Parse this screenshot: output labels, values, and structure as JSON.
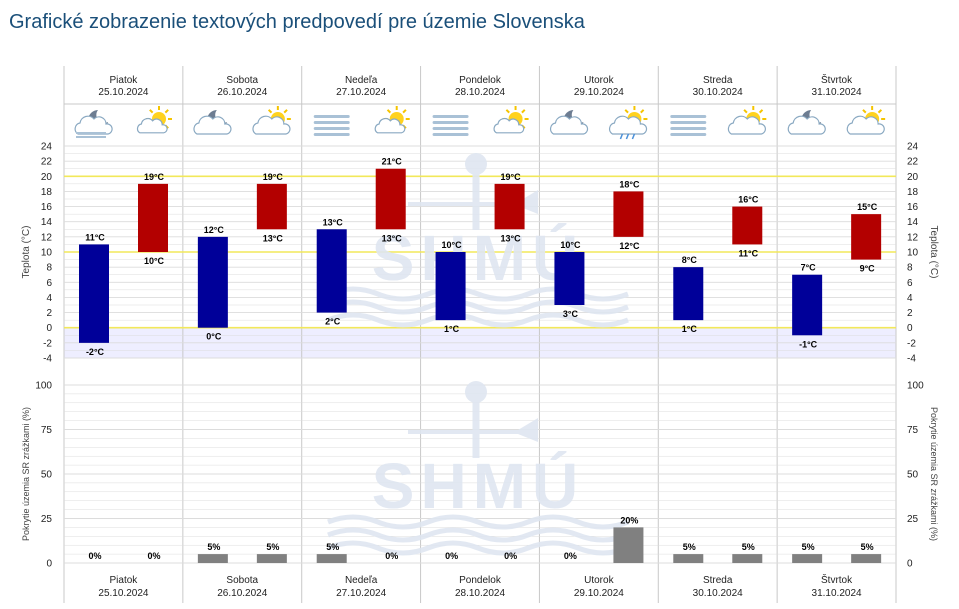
{
  "page": {
    "title": "Grafické zobrazenie textových predpovedí pre územie Slovenska"
  },
  "colors": {
    "night_bar": "#000099",
    "day_bar": "#b30000",
    "precip_bar": "#808080",
    "highlight_line": "#f2e85a",
    "below_zero_band": "#eeeeff",
    "grid": "#dcdcdc",
    "separator": "#c8c8c8",
    "watermark": "#dfe6f1"
  },
  "watermark": {
    "text": "SHMÚ"
  },
  "days": [
    {
      "name": "Piatok",
      "date": "25.10.2024",
      "icons": [
        "cloudy-moon-fog-icon",
        "partly-cloudy-sun-icon"
      ]
    },
    {
      "name": "Sobota",
      "date": "26.10.2024",
      "icons": [
        "cloudy-moon-icon",
        "cloudy-sun-icon"
      ]
    },
    {
      "name": "Nedeľa",
      "date": "27.10.2024",
      "icons": [
        "fog-icon",
        "partly-cloudy-sun-icon"
      ]
    },
    {
      "name": "Pondelok",
      "date": "28.10.2024",
      "icons": [
        "fog-icon",
        "partly-cloudy-sun-icon"
      ]
    },
    {
      "name": "Utorok",
      "date": "29.10.2024",
      "icons": [
        "cloudy-moon-icon",
        "cloudy-sun-rain-icon"
      ]
    },
    {
      "name": "Streda",
      "date": "30.10.2024",
      "icons": [
        "fog-icon",
        "cloudy-sun-icon"
      ]
    },
    {
      "name": "Štvrtok",
      "date": "31.10.2024",
      "icons": [
        "cloudy-moon-icon",
        "cloudy-sun-icon"
      ]
    }
  ],
  "chart_data": [
    {
      "type": "bar",
      "subtype": "floating-range",
      "ylabel_left": "Teplota (°C)",
      "ylabel_right": "Teplota (°C)",
      "ylim": [
        -4,
        24
      ],
      "yticks": [
        -4,
        -2,
        0,
        2,
        4,
        6,
        8,
        10,
        12,
        14,
        16,
        18,
        20,
        22,
        24
      ],
      "highlight_lines": [
        0,
        10,
        20
      ],
      "grid": true,
      "series": [
        {
          "name": "night",
          "min": [
            -2,
            0,
            2,
            1,
            3,
            1,
            -1
          ],
          "max": [
            11,
            12,
            13,
            10,
            10,
            8,
            7
          ]
        },
        {
          "name": "day",
          "min": [
            10,
            13,
            13,
            13,
            12,
            11,
            9
          ],
          "max": [
            19,
            19,
            21,
            19,
            18,
            16,
            15
          ]
        }
      ],
      "unit": "°C"
    },
    {
      "type": "bar",
      "ylabel_left": "Pokrytie územia SR zrážkami (%)",
      "ylabel_right": "Pokrytie územia SR zrážkami (%)",
      "ylim": [
        0,
        100
      ],
      "yticks": [
        0,
        25,
        50,
        75,
        100
      ],
      "grid": true,
      "series": [
        {
          "name": "night",
          "values": [
            0,
            5,
            5,
            0,
            0,
            5,
            5
          ]
        },
        {
          "name": "day",
          "values": [
            0,
            5,
            0,
            0,
            20,
            5,
            5
          ]
        }
      ],
      "unit": "%"
    }
  ]
}
